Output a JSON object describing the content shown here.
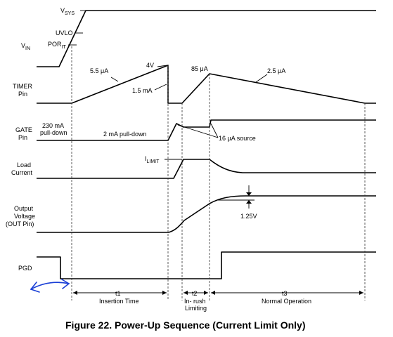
{
  "signals": {
    "vin": "V",
    "vin_sub": "IN",
    "timer": "TIMER",
    "timer2": "Pin",
    "gate": "GATE",
    "gate2": "Pin",
    "load": "Load",
    "load2": "Current",
    "out1": "Output",
    "out2": "Voltage",
    "out3": "(OUT Pin)",
    "pgd": "PGD"
  },
  "annotations": {
    "vsys": "V",
    "vsys_sub": "SYS",
    "uvlo": "UVLO",
    "por": "POR",
    "por_sub": "IT",
    "timer_charge": "5.5 μA",
    "timer_peak": "4V",
    "timer_discharge": "1.5 mA",
    "inrush_charge": "85 μA",
    "normal_discharge": "2.5 μA",
    "gate_pulldown_230a": "230 mA",
    "gate_pulldown_230b": "pull-down",
    "gate_pulldown_2": "2 mA pull-down",
    "gate_source": "16 μA source",
    "ilimit": "I",
    "ilimit_sub": "LIMIT",
    "out_drop": "1.25V"
  },
  "intervals": {
    "t1": "t1",
    "t1_label": "Insertion Time",
    "t2": "t2",
    "t2_label1": "In- rush",
    "t2_label2": "Limiting",
    "t3": "t3",
    "t3_label": "Normal Operation"
  },
  "caption": "Figure 22.  Power-Up Sequence (Current Limit Only)"
}
